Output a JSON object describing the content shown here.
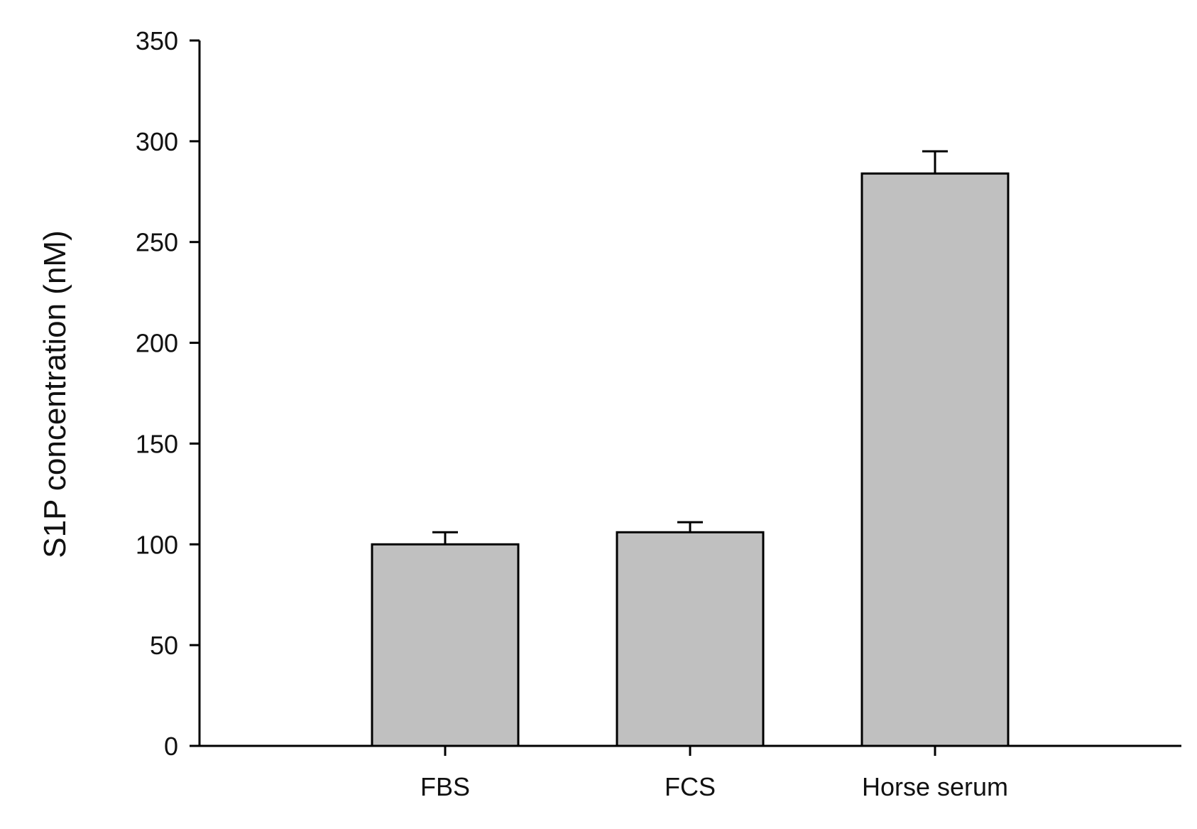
{
  "chart_data": {
    "type": "bar",
    "title": "",
    "xlabel": "",
    "ylabel": "S1P concentration (nM)",
    "categories": [
      "FBS",
      "FCS",
      "Horse serum"
    ],
    "values": [
      100,
      106,
      284
    ],
    "error_plus": [
      6,
      5,
      11
    ],
    "ylim": [
      0,
      350
    ],
    "yticks": [
      0,
      50,
      100,
      150,
      200,
      250,
      300,
      350
    ],
    "grid": false,
    "legend": "none",
    "bar_color": "#c0c0c0",
    "bar_edge_color": "#000000"
  }
}
